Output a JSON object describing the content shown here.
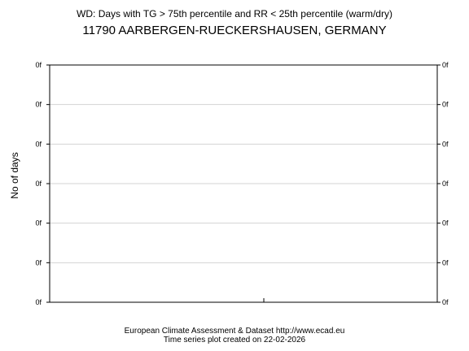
{
  "chart_data": {
    "type": "line",
    "title": "WD: Days with TG > 75th percentile and RR < 25th percentile (warm/dry)",
    "subtitle": "11790 AARBERGEN-RUECKERSHAUSEN, GERMANY",
    "xlabel": "",
    "ylabel": "No of days",
    "y_tick_labels": [
      "0f",
      "0f",
      "0f",
      "0f",
      "0f",
      "0f",
      "0f"
    ],
    "x_tick_labels": [],
    "series": [],
    "grid": true,
    "legend": "none"
  },
  "footer": {
    "line1": "European Climate Assessment & Dataset  http://www.ecad.eu",
    "line2": "Time series plot created on 22-02-2026"
  },
  "colors": {
    "background": "#ffffff",
    "frame": "#000000",
    "grid": "#d3d3d3"
  }
}
